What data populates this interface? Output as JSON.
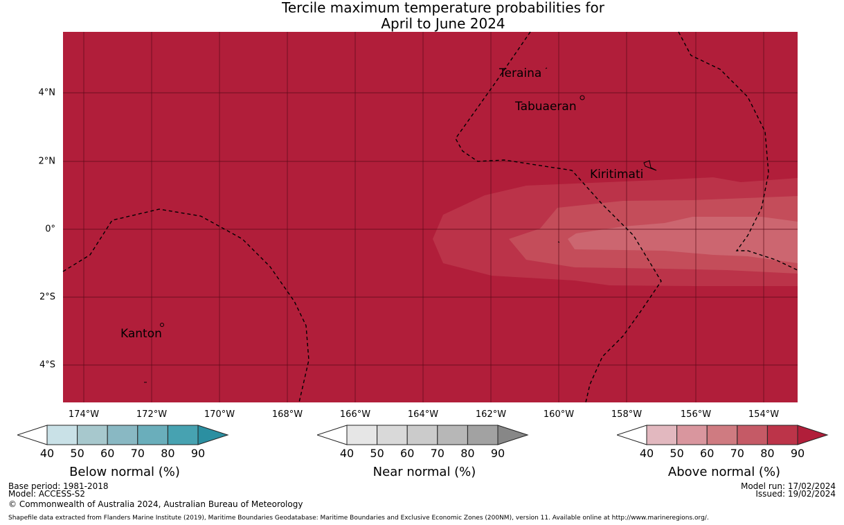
{
  "title": {
    "line1": "Tercile maximum temperature probabilities for",
    "line2": "April to June 2024"
  },
  "x_ticks": [
    "174°W",
    "172°W",
    "170°W",
    "168°W",
    "166°W",
    "164°W",
    "162°W",
    "160°W",
    "158°W",
    "156°W",
    "154°W"
  ],
  "y_ticks": [
    "4°N",
    "2°N",
    "0°",
    "2°S",
    "4°S"
  ],
  "places": [
    "Teraina",
    "Tabuaeran",
    "Kiritimati",
    "Kanton"
  ],
  "legend": {
    "ticks": [
      "40",
      "50",
      "60",
      "70",
      "80",
      "90"
    ],
    "below": {
      "title": "Below normal (%)",
      "colors": [
        "#ffffff",
        "#c9e1e7",
        "#a7c8cd",
        "#89b8c3",
        "#6aaebb",
        "#47a2b1",
        "#2b8fa1"
      ]
    },
    "near": {
      "title": "Near normal (%)",
      "colors": [
        "#ffffff",
        "#e6e6e6",
        "#d9d9d9",
        "#cbcbcb",
        "#b7b7b7",
        "#a2a2a2",
        "#878787"
      ]
    },
    "above": {
      "title": "Above normal (%)",
      "colors": [
        "#ffffff",
        "#e2b8bf",
        "#d9969e",
        "#cf7b81",
        "#c55a66",
        "#bc3449",
        "#b11e3a"
      ]
    }
  },
  "footer": {
    "base_period": "Base period: 1981-2018",
    "model": "Model: ACCESS-S2",
    "copyright": "© Commonwealth of Australia 2024, Australian Bureau of Meteorology",
    "model_run": "Model run: 17/02/2024",
    "issued": "Issued: 19/02/2024",
    "shapefile": "Shapefile data extracted from Flanders Marine Institute (2019), Maritime Boundaries Geodatabase: Maritime Boundaries and Exclusive Economic Zones (200NM), version 11. Available online at http://www.marineregions.org/."
  }
}
